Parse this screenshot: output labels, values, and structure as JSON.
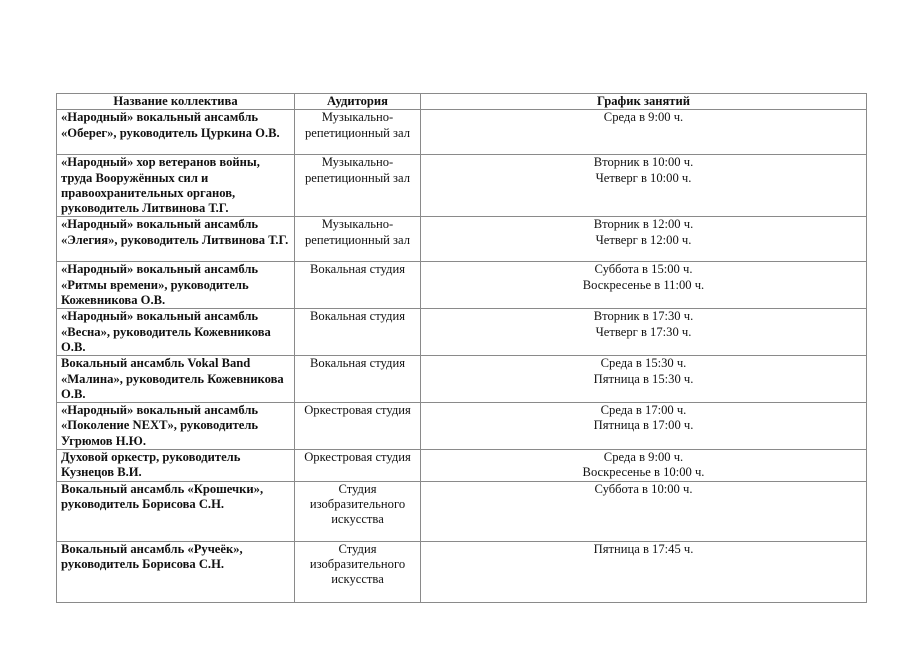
{
  "table": {
    "headers": [
      "Название коллектива",
      "Аудитория",
      "График занятий"
    ],
    "rows": [
      {
        "name": "«Народный» вокальный ансамбль «Оберег», руководитель Цуркина О.В.",
        "room": "Музыкально-репетиционный зал",
        "schedule": [
          "Среда в 9:00 ч."
        ]
      },
      {
        "name": "«Народный» хор ветеранов войны, труда Вооружённых сил и правоохранительных органов, руководитель Литвинова Т.Г.",
        "room": "Музыкально-репетиционный зал",
        "schedule": [
          "Вторник в 10:00 ч.",
          "Четверг в 10:00 ч."
        ]
      },
      {
        "name": "«Народный» вокальный ансамбль «Элегия», руководитель Литвинова Т.Г.",
        "room": "Музыкально-репетиционный зал",
        "schedule": [
          "Вторник в 12:00 ч.",
          "Четверг в 12:00 ч."
        ]
      },
      {
        "name": "«Народный» вокальный ансамбль «Ритмы времени», руководитель Кожевникова О.В.",
        "room": "Вокальная студия",
        "schedule": [
          "Суббота в 15:00 ч.",
          "Воскресенье в 11:00 ч."
        ]
      },
      {
        "name": "«Народный» вокальный ансамбль «Весна», руководитель Кожевникова О.В.",
        "room": "Вокальная студия",
        "schedule": [
          "Вторник в 17:30 ч.",
          "Четверг в 17:30 ч."
        ]
      },
      {
        "name": "Вокальный ансамбль Vokal Band «Малина», руководитель Кожевникова О.В.",
        "room": "Вокальная студия",
        "schedule": [
          "Среда в 15:30 ч.",
          "Пятница в 15:30 ч."
        ]
      },
      {
        "name": "«Народный» вокальный ансамбль «Поколение NEXT», руководитель Угрюмов Н.Ю.",
        "room": "Оркестровая студия",
        "schedule": [
          "Среда в 17:00 ч.",
          "Пятница в 17:00 ч."
        ]
      },
      {
        "name": "Духовой оркестр, руководитель Кузнецов В.И.",
        "room": "Оркестровая студия",
        "schedule": [
          "Среда в 9:00 ч.",
          "Воскресенье в 10:00 ч."
        ]
      },
      {
        "name": "Вокальный ансамбль «Крошечки», руководитель Борисова С.Н.",
        "room": "Студия изобразительного искусства",
        "schedule": [
          "Суббота в 10:00 ч."
        ]
      },
      {
        "name": "Вокальный ансамбль «Ручеёк», руководитель Борисова С.Н.",
        "room": "Студия изобразительного искусства",
        "schedule": [
          "Пятница в 17:45 ч."
        ]
      }
    ]
  }
}
